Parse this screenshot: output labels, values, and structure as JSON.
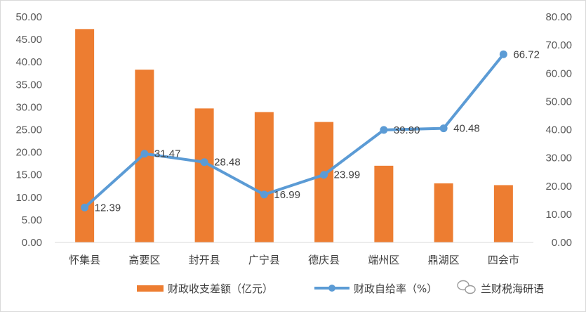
{
  "chart_data": {
    "type": "bar",
    "categories": [
      "怀集县",
      "高要区",
      "封开县",
      "广宁县",
      "德庆县",
      "端州区",
      "鼎湖区",
      "四会市"
    ],
    "series": [
      {
        "name": "财政收支差额（亿元）",
        "type": "bar",
        "axis": "left",
        "values": [
          47.3,
          38.3,
          29.7,
          28.9,
          26.7,
          17.0,
          13.1,
          12.7
        ]
      },
      {
        "name": "财政自给率（%）",
        "type": "line",
        "axis": "right",
        "values": [
          12.39,
          31.47,
          28.48,
          16.99,
          23.99,
          39.9,
          40.48,
          66.72
        ],
        "labels": [
          "12.39",
          "31.47",
          "28.48",
          "16.99",
          "23.99",
          "39.90",
          "40.48",
          "66.72"
        ]
      }
    ],
    "y_left": {
      "range": [
        0,
        50
      ],
      "ticks": [
        "0.00",
        "5.00",
        "10.00",
        "15.00",
        "20.00",
        "25.00",
        "30.00",
        "35.00",
        "40.00",
        "45.00",
        "50.00"
      ]
    },
    "y_right": {
      "range": [
        0,
        80
      ],
      "ticks": [
        "0.00",
        "10.00",
        "20.00",
        "30.00",
        "40.00",
        "50.00",
        "60.00",
        "70.00",
        "80.00"
      ]
    },
    "legend_position": "bottom",
    "grid": false,
    "colors": {
      "bar": "#ED7D31",
      "line": "#5B9BD5"
    }
  },
  "watermark": {
    "icon": "wechat-icon",
    "text": "兰财税海研语"
  }
}
